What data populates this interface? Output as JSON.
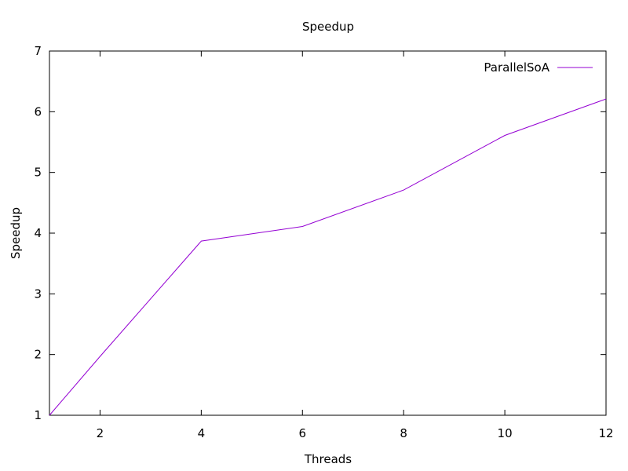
{
  "chart_data": {
    "type": "line",
    "title": "Speedup",
    "xlabel": "Threads",
    "ylabel": "Speedup",
    "xlim": [
      1,
      12
    ],
    "ylim": [
      1,
      7
    ],
    "xticks": [
      2,
      4,
      6,
      8,
      10,
      12
    ],
    "yticks": [
      1,
      2,
      3,
      4,
      5,
      6,
      7
    ],
    "grid": false,
    "legend_position": "top-right",
    "series": [
      {
        "name": "ParallelSoA",
        "color": "#9400d3",
        "x": [
          1,
          2,
          4,
          6,
          8,
          10,
          12
        ],
        "y": [
          1.0,
          1.97,
          3.87,
          4.11,
          4.71,
          5.61,
          6.21
        ]
      }
    ]
  }
}
